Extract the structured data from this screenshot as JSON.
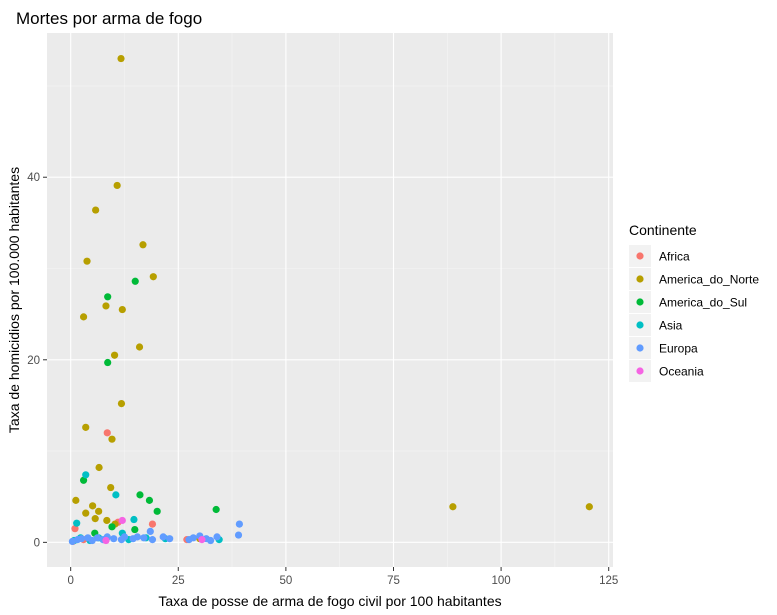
{
  "chart_data": {
    "type": "scatter",
    "title": "Mortes por arma de fogo",
    "xlabel": "Taxa de posse de arma de fogo civil por 100 habitantes",
    "ylabel": "Taxa de homicidios por 100.000 habitantes",
    "xlim": [
      -5.5,
      126
    ],
    "ylim": [
      -2.7,
      55.8
    ],
    "x_ticks": [
      0,
      25,
      50,
      75,
      100,
      125
    ],
    "y_ticks": [
      0,
      20,
      40
    ],
    "grid": true,
    "legend": {
      "title": "Continente",
      "position": "right"
    },
    "series": [
      {
        "name": "Africa",
        "color": "#F8766D",
        "points": [
          [
            1.0,
            1.5
          ],
          [
            8.5,
            12.0
          ],
          [
            19.0,
            2.0
          ],
          [
            11.0,
            2.2
          ],
          [
            3.0,
            0.3
          ],
          [
            27.0,
            0.3
          ],
          [
            0.5,
            0.1
          ]
        ]
      },
      {
        "name": "America_do_Norte",
        "color": "#B79F00",
        "points": [
          [
            11.7,
            53.0
          ],
          [
            10.8,
            39.1
          ],
          [
            5.8,
            36.4
          ],
          [
            16.8,
            32.6
          ],
          [
            3.8,
            30.8
          ],
          [
            19.2,
            29.1
          ],
          [
            8.2,
            25.9
          ],
          [
            12.0,
            25.5
          ],
          [
            3.0,
            24.7
          ],
          [
            16.0,
            21.4
          ],
          [
            10.2,
            20.5
          ],
          [
            11.8,
            15.2
          ],
          [
            3.5,
            12.6
          ],
          [
            9.6,
            11.3
          ],
          [
            6.6,
            8.2
          ],
          [
            9.3,
            6.0
          ],
          [
            1.2,
            4.6
          ],
          [
            5.1,
            4.0
          ],
          [
            3.5,
            3.2
          ],
          [
            6.5,
            3.4
          ],
          [
            5.7,
            2.6
          ],
          [
            8.4,
            2.4
          ],
          [
            10.3,
            2.0
          ],
          [
            88.8,
            3.9
          ],
          [
            120.5,
            3.9
          ],
          [
            30.0,
            0.4
          ]
        ]
      },
      {
        "name": "America_do_Sul",
        "color": "#00BA38",
        "points": [
          [
            15.0,
            28.6
          ],
          [
            8.6,
            26.9
          ],
          [
            8.6,
            19.7
          ],
          [
            16.1,
            5.2
          ],
          [
            3.0,
            6.8
          ],
          [
            18.3,
            4.6
          ],
          [
            20.1,
            3.4
          ],
          [
            33.8,
            3.6
          ],
          [
            5.6,
            1.0
          ],
          [
            9.6,
            1.7
          ],
          [
            14.9,
            1.4
          ]
        ]
      },
      {
        "name": "Asia",
        "color": "#00BFC4",
        "points": [
          [
            3.5,
            7.4
          ],
          [
            10.5,
            5.2
          ],
          [
            1.4,
            2.1
          ],
          [
            14.7,
            2.5
          ],
          [
            12.0,
            1.0
          ],
          [
            2.3,
            0.5
          ],
          [
            6.5,
            0.5
          ],
          [
            8.3,
            0.4
          ],
          [
            13.5,
            0.3
          ],
          [
            17.5,
            0.5
          ],
          [
            22.0,
            0.4
          ],
          [
            34.5,
            0.3
          ],
          [
            4.5,
            0.2
          ],
          [
            0.8,
            0.2
          ]
        ]
      },
      {
        "name": "Europa",
        "color": "#619CFF",
        "points": [
          [
            39.2,
            2.0
          ],
          [
            39.0,
            0.8
          ],
          [
            30.0,
            0.7
          ],
          [
            31.5,
            0.4
          ],
          [
            28.5,
            0.5
          ],
          [
            23.0,
            0.4
          ],
          [
            21.5,
            0.6
          ],
          [
            18.5,
            1.2
          ],
          [
            17.0,
            0.5
          ],
          [
            15.5,
            0.6
          ],
          [
            14.5,
            0.4
          ],
          [
            12.5,
            0.6
          ],
          [
            11.8,
            0.3
          ],
          [
            10.0,
            0.4
          ],
          [
            8.5,
            0.6
          ],
          [
            7.5,
            0.3
          ],
          [
            6.2,
            0.5
          ],
          [
            5.0,
            0.2
          ],
          [
            4.0,
            0.5
          ],
          [
            2.5,
            0.4
          ],
          [
            1.6,
            0.3
          ],
          [
            0.4,
            0.1
          ],
          [
            19.0,
            0.3
          ],
          [
            32.5,
            0.2
          ],
          [
            34.0,
            0.6
          ],
          [
            27.5,
            0.3
          ]
        ]
      },
      {
        "name": "Oceania",
        "color": "#F564E3",
        "points": [
          [
            12.0,
            2.4
          ],
          [
            8.2,
            0.2
          ],
          [
            30.5,
            0.3
          ]
        ]
      }
    ]
  }
}
